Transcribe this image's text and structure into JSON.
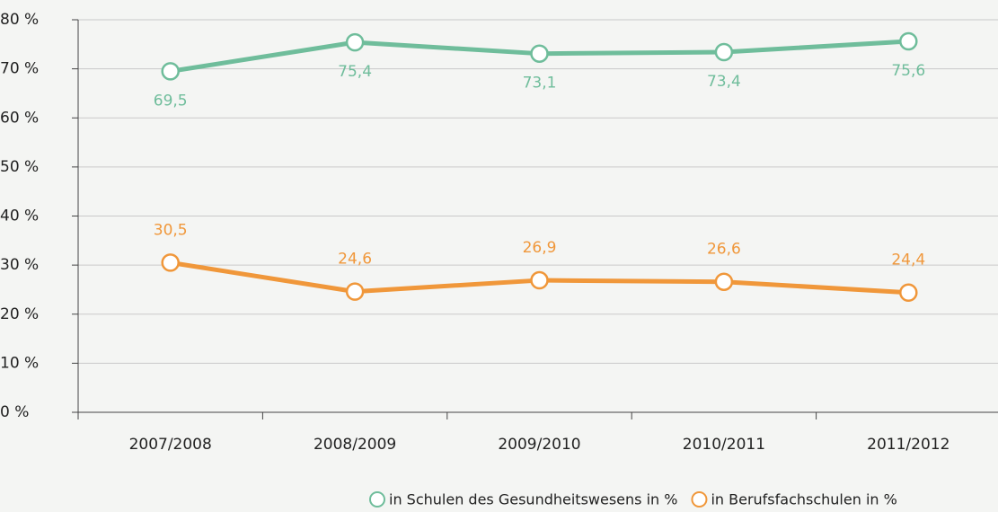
{
  "chart_data": {
    "type": "line",
    "categories": [
      "2007/2008",
      "2008/2009",
      "2009/2010",
      "2010/2011",
      "2011/2012"
    ],
    "series": [
      {
        "name": "in Schulen des Gesundheitswesens in %",
        "color": "#6fbd9b",
        "values": [
          69.5,
          75.4,
          73.1,
          73.4,
          75.6
        ],
        "value_labels": [
          "69,5",
          "75,4",
          "73,1",
          "73,4",
          "75,6"
        ]
      },
      {
        "name": "in Berufsfachschulen in %",
        "color": "#f0973a",
        "values": [
          30.5,
          24.6,
          26.9,
          26.6,
          24.4
        ],
        "value_labels": [
          "30,5",
          "24,6",
          "26,9",
          "26,6",
          "24,4"
        ]
      }
    ],
    "ylim": [
      0,
      80
    ],
    "yticks": [
      {
        "value": 0,
        "label": "0 %"
      },
      {
        "value": 10,
        "label": "10 %"
      },
      {
        "value": 20,
        "label": "20 %"
      },
      {
        "value": 30,
        "label": "30 %"
      },
      {
        "value": 40,
        "label": "40 %"
      },
      {
        "value": 50,
        "label": "50 %"
      },
      {
        "value": 60,
        "label": "60 %"
      },
      {
        "value": 70,
        "label": "70 %"
      },
      {
        "value": 80,
        "label": "80 %"
      }
    ],
    "grid": true,
    "legend": "bottom"
  }
}
